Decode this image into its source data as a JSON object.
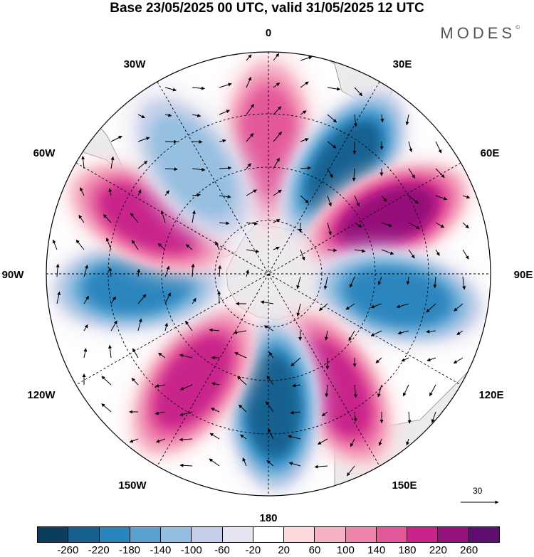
{
  "title": "Base 23/05/2025 00 UTC, valid 31/05/2025 12 UTC",
  "brand": "MODES",
  "brand_mark": "©",
  "longitude_labels": {
    "lon_0": "0",
    "lon_30e": "30E",
    "lon_60e": "60E",
    "lon_90e": "90E",
    "lon_120e": "120E",
    "lon_150e": "150E",
    "lon_180": "180",
    "lon_150w": "150W",
    "lon_120w": "120W",
    "lon_90w": "90W",
    "lon_60w": "60W",
    "lon_30w": "30W"
  },
  "vector_scale": {
    "value": "30"
  },
  "colorbar": {
    "colors": [
      "#0b3d5e",
      "#14608f",
      "#2b85bd",
      "#5aa3d1",
      "#94bfe0",
      "#c3cfe8",
      "#e6e6f2",
      "#ffffff",
      "#fbd9de",
      "#f6b3c6",
      "#ef84ad",
      "#e35699",
      "#c7238a",
      "#94107a",
      "#5e0f6f"
    ],
    "labels": [
      "-260",
      "-220",
      "-180",
      "-140",
      "-100",
      "-60",
      "-20",
      "20",
      "60",
      "100",
      "140",
      "180",
      "220",
      "260"
    ]
  },
  "map_data": {
    "projection": "south polar stereographic",
    "anomaly_lobes": [
      {
        "lon": 0,
        "sign": "positive",
        "peak": 140
      },
      {
        "lon": 35,
        "sign": "negative",
        "peak": -220
      },
      {
        "lon": 65,
        "sign": "positive",
        "peak": 220
      },
      {
        "lon": 100,
        "sign": "negative",
        "peak": -180
      },
      {
        "lon": 150,
        "sign": "positive",
        "peak": 200
      },
      {
        "lon": 178,
        "sign": "negative",
        "peak": -220
      },
      {
        "lon": 215,
        "sign": "positive",
        "peak": 200
      },
      {
        "lon": 265,
        "sign": "negative",
        "peak": -180
      },
      {
        "lon": 295,
        "sign": "positive",
        "peak": 200
      },
      {
        "lon": 325,
        "sign": "negative",
        "peak": -100
      }
    ]
  }
}
